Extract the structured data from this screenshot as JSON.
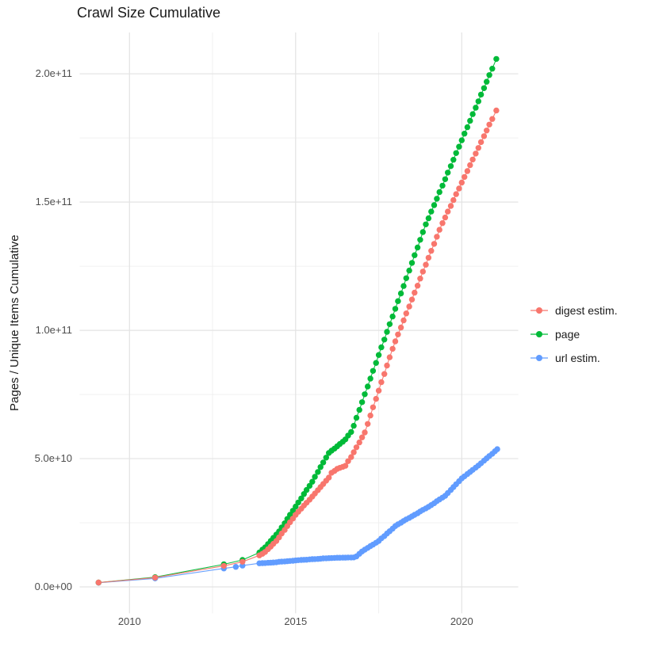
{
  "chart_data": {
    "type": "line",
    "title": "Crawl Size Cumulative",
    "xlabel": "",
    "ylabel": "Pages / Unique Items Cumulative",
    "unit": "values in 1e9 (billions) of pages / unique items",
    "grid": true,
    "legend_position": "right",
    "xlim": [
      2008.5,
      2021.7
    ],
    "ylim": [
      -10.3,
      216.1
    ],
    "x_ticks": [
      {
        "value": 2010,
        "label": "2010"
      },
      {
        "value": 2015,
        "label": "2015"
      },
      {
        "value": 2020,
        "label": "2020"
      }
    ],
    "x_minor": [
      2012.5,
      2017.5
    ],
    "y_ticks": [
      {
        "value": 0,
        "label": "0.0e+00"
      },
      {
        "value": 50,
        "label": "5.0e+10"
      },
      {
        "value": 100,
        "label": "1.0e+11"
      },
      {
        "value": 150,
        "label": "1.5e+11"
      },
      {
        "value": 200,
        "label": "2.0e+11"
      }
    ],
    "y_minor": [
      25,
      75,
      125,
      175
    ],
    "series": [
      {
        "name": "digest estim.",
        "color": "#F8766D",
        "points": [
          [
            2009.07,
            1.7
          ],
          [
            2010.77,
            3.6
          ],
          [
            2012.84,
            8.2
          ],
          [
            2013.4,
            9.8
          ],
          [
            2013.91,
            12.3
          ],
          [
            2014.0,
            12.9
          ],
          [
            2014.08,
            13.6
          ],
          [
            2014.17,
            14.7
          ],
          [
            2014.25,
            15.7
          ],
          [
            2014.33,
            16.8
          ],
          [
            2014.42,
            17.9
          ],
          [
            2014.5,
            19.3
          ],
          [
            2014.58,
            20.8
          ],
          [
            2014.67,
            22.2
          ],
          [
            2014.75,
            23.7
          ],
          [
            2014.83,
            25.2
          ],
          [
            2014.92,
            26.6
          ],
          [
            2015.0,
            28.1
          ],
          [
            2015.08,
            29.3
          ],
          [
            2015.17,
            30.5
          ],
          [
            2015.25,
            31.7
          ],
          [
            2015.33,
            32.8
          ],
          [
            2015.42,
            34.0
          ],
          [
            2015.5,
            35.2
          ],
          [
            2015.58,
            36.4
          ],
          [
            2015.67,
            37.7
          ],
          [
            2015.75,
            38.9
          ],
          [
            2015.83,
            40.1
          ],
          [
            2015.92,
            41.4
          ],
          [
            2016.0,
            42.6
          ],
          [
            2016.08,
            44.5
          ],
          [
            2016.17,
            45.2
          ],
          [
            2016.25,
            46.0
          ],
          [
            2016.33,
            46.4
          ],
          [
            2016.42,
            46.8
          ],
          [
            2016.5,
            47.2
          ],
          [
            2016.58,
            49.0
          ],
          [
            2016.67,
            50.6
          ],
          [
            2016.75,
            52.5
          ],
          [
            2016.83,
            54.4
          ],
          [
            2016.92,
            56.3
          ],
          [
            2017.0,
            58.3
          ],
          [
            2017.08,
            60.2
          ],
          [
            2017.17,
            63.5
          ],
          [
            2017.25,
            66.8
          ],
          [
            2017.33,
            70.0
          ],
          [
            2017.42,
            73.3
          ],
          [
            2017.5,
            76.5
          ],
          [
            2017.58,
            79.8
          ],
          [
            2017.67,
            83.0
          ],
          [
            2017.75,
            86.3
          ],
          [
            2017.83,
            89.5
          ],
          [
            2017.92,
            92.8
          ],
          [
            2018.0,
            95.7
          ],
          [
            2018.08,
            98.4
          ],
          [
            2018.17,
            101.1
          ],
          [
            2018.25,
            103.9
          ],
          [
            2018.33,
            106.6
          ],
          [
            2018.42,
            109.3
          ],
          [
            2018.5,
            112.0
          ],
          [
            2018.58,
            114.7
          ],
          [
            2018.67,
            117.4
          ],
          [
            2018.75,
            120.2
          ],
          [
            2018.83,
            122.9
          ],
          [
            2018.92,
            125.6
          ],
          [
            2019.0,
            128.3
          ],
          [
            2019.08,
            131.0
          ],
          [
            2019.17,
            133.7
          ],
          [
            2019.25,
            136.5
          ],
          [
            2019.33,
            139.2
          ],
          [
            2019.42,
            141.8
          ],
          [
            2019.5,
            144.0
          ],
          [
            2019.58,
            146.3
          ],
          [
            2019.67,
            148.5
          ],
          [
            2019.75,
            150.8
          ],
          [
            2019.83,
            153.1
          ],
          [
            2019.92,
            155.3
          ],
          [
            2020.0,
            157.6
          ],
          [
            2020.08,
            159.8
          ],
          [
            2020.17,
            162.1
          ],
          [
            2020.25,
            164.4
          ],
          [
            2020.33,
            166.6
          ],
          [
            2020.42,
            168.9
          ],
          [
            2020.5,
            171.1
          ],
          [
            2020.58,
            173.4
          ],
          [
            2020.67,
            175.7
          ],
          [
            2020.75,
            177.9
          ],
          [
            2020.83,
            180.2
          ],
          [
            2020.92,
            182.4
          ],
          [
            2021.04,
            185.7
          ]
        ]
      },
      {
        "name": "page",
        "color": "#00BA38",
        "points": [
          [
            2009.07,
            1.7
          ],
          [
            2010.77,
            3.8
          ],
          [
            2012.84,
            8.8
          ],
          [
            2013.4,
            10.5
          ],
          [
            2013.91,
            13.4
          ],
          [
            2014.0,
            14.5
          ],
          [
            2014.08,
            15.4
          ],
          [
            2014.17,
            16.7
          ],
          [
            2014.25,
            17.9
          ],
          [
            2014.33,
            19.1
          ],
          [
            2014.42,
            20.4
          ],
          [
            2014.5,
            21.6
          ],
          [
            2014.58,
            23.2
          ],
          [
            2014.67,
            24.8
          ],
          [
            2014.75,
            26.5
          ],
          [
            2014.83,
            28.1
          ],
          [
            2014.92,
            29.7
          ],
          [
            2015.0,
            31.3
          ],
          [
            2015.08,
            32.9
          ],
          [
            2015.17,
            34.5
          ],
          [
            2015.25,
            36.2
          ],
          [
            2015.33,
            37.8
          ],
          [
            2015.42,
            39.4
          ],
          [
            2015.5,
            41.0
          ],
          [
            2015.58,
            42.9
          ],
          [
            2015.67,
            44.8
          ],
          [
            2015.75,
            46.7
          ],
          [
            2015.83,
            48.5
          ],
          [
            2015.92,
            50.4
          ],
          [
            2016.0,
            52.2
          ],
          [
            2016.08,
            53.1
          ],
          [
            2016.17,
            53.9
          ],
          [
            2016.25,
            54.8
          ],
          [
            2016.33,
            55.7
          ],
          [
            2016.42,
            56.6
          ],
          [
            2016.5,
            57.5
          ],
          [
            2016.58,
            59.0
          ],
          [
            2016.67,
            60.4
          ],
          [
            2016.75,
            62.8
          ],
          [
            2016.83,
            65.9
          ],
          [
            2016.92,
            69.0
          ],
          [
            2017.0,
            72.0
          ],
          [
            2017.08,
            75.1
          ],
          [
            2017.17,
            78.1
          ],
          [
            2017.25,
            81.2
          ],
          [
            2017.33,
            84.2
          ],
          [
            2017.42,
            87.3
          ],
          [
            2017.5,
            90.4
          ],
          [
            2017.58,
            93.4
          ],
          [
            2017.67,
            96.4
          ],
          [
            2017.75,
            99.4
          ],
          [
            2017.83,
            102.4
          ],
          [
            2017.92,
            105.4
          ],
          [
            2018.0,
            108.4
          ],
          [
            2018.08,
            111.4
          ],
          [
            2018.17,
            114.4
          ],
          [
            2018.25,
            117.3
          ],
          [
            2018.33,
            120.3
          ],
          [
            2018.42,
            123.3
          ],
          [
            2018.5,
            126.3
          ],
          [
            2018.58,
            129.3
          ],
          [
            2018.67,
            132.3
          ],
          [
            2018.75,
            135.3
          ],
          [
            2018.83,
            138.3
          ],
          [
            2018.92,
            141.3
          ],
          [
            2019.0,
            143.7
          ],
          [
            2019.08,
            146.3
          ],
          [
            2019.17,
            148.8
          ],
          [
            2019.25,
            151.3
          ],
          [
            2019.33,
            153.9
          ],
          [
            2019.42,
            156.4
          ],
          [
            2019.5,
            158.9
          ],
          [
            2019.58,
            161.5
          ],
          [
            2019.67,
            164.0
          ],
          [
            2019.75,
            166.5
          ],
          [
            2019.83,
            169.1
          ],
          [
            2019.92,
            171.6
          ],
          [
            2020.0,
            174.1
          ],
          [
            2020.08,
            176.7
          ],
          [
            2020.17,
            179.2
          ],
          [
            2020.25,
            181.7
          ],
          [
            2020.33,
            184.3
          ],
          [
            2020.42,
            186.8
          ],
          [
            2020.5,
            189.3
          ],
          [
            2020.58,
            191.9
          ],
          [
            2020.67,
            194.4
          ],
          [
            2020.75,
            196.9
          ],
          [
            2020.83,
            199.5
          ],
          [
            2020.92,
            202.0
          ],
          [
            2021.04,
            205.8
          ]
        ]
      },
      {
        "name": "url estim.",
        "color": "#619CFF",
        "points": [
          [
            2009.07,
            1.6
          ],
          [
            2010.77,
            3.3
          ],
          [
            2012.84,
            7.2
          ],
          [
            2013.2,
            7.8
          ],
          [
            2013.4,
            8.3
          ],
          [
            2013.91,
            9.2
          ],
          [
            2014.0,
            9.25
          ],
          [
            2014.08,
            9.3
          ],
          [
            2014.17,
            9.4
          ],
          [
            2014.25,
            9.45
          ],
          [
            2014.33,
            9.5
          ],
          [
            2014.42,
            9.6
          ],
          [
            2014.5,
            9.8
          ],
          [
            2014.58,
            9.85
          ],
          [
            2014.67,
            9.9
          ],
          [
            2014.75,
            10.0
          ],
          [
            2014.83,
            10.1
          ],
          [
            2014.92,
            10.2
          ],
          [
            2015.0,
            10.3
          ],
          [
            2015.08,
            10.4
          ],
          [
            2015.17,
            10.5
          ],
          [
            2015.25,
            10.55
          ],
          [
            2015.33,
            10.6
          ],
          [
            2015.42,
            10.7
          ],
          [
            2015.5,
            10.8
          ],
          [
            2015.58,
            10.85
          ],
          [
            2015.67,
            10.9
          ],
          [
            2015.75,
            11.0
          ],
          [
            2015.83,
            11.1
          ],
          [
            2015.92,
            11.15
          ],
          [
            2016.0,
            11.2
          ],
          [
            2016.08,
            11.25
          ],
          [
            2016.17,
            11.3
          ],
          [
            2016.25,
            11.35
          ],
          [
            2016.33,
            11.35
          ],
          [
            2016.42,
            11.4
          ],
          [
            2016.5,
            11.4
          ],
          [
            2016.58,
            11.45
          ],
          [
            2016.67,
            11.45
          ],
          [
            2016.75,
            11.5
          ],
          [
            2016.83,
            11.9
          ],
          [
            2016.92,
            12.9
          ],
          [
            2017.0,
            13.8
          ],
          [
            2017.08,
            14.5
          ],
          [
            2017.17,
            15.2
          ],
          [
            2017.25,
            15.9
          ],
          [
            2017.33,
            16.5
          ],
          [
            2017.42,
            17.2
          ],
          [
            2017.5,
            17.9
          ],
          [
            2017.58,
            18.9
          ],
          [
            2017.67,
            19.8
          ],
          [
            2017.75,
            20.8
          ],
          [
            2017.83,
            21.7
          ],
          [
            2017.92,
            22.7
          ],
          [
            2018.0,
            23.7
          ],
          [
            2018.08,
            24.4
          ],
          [
            2018.17,
            25.0
          ],
          [
            2018.25,
            25.7
          ],
          [
            2018.33,
            26.3
          ],
          [
            2018.42,
            26.9
          ],
          [
            2018.5,
            27.5
          ],
          [
            2018.58,
            28.1
          ],
          [
            2018.67,
            28.7
          ],
          [
            2018.75,
            29.4
          ],
          [
            2018.83,
            30.0
          ],
          [
            2018.92,
            30.6
          ],
          [
            2019.0,
            31.2
          ],
          [
            2019.08,
            31.9
          ],
          [
            2019.17,
            32.6
          ],
          [
            2019.25,
            33.4
          ],
          [
            2019.33,
            34.1
          ],
          [
            2019.42,
            34.8
          ],
          [
            2019.5,
            35.5
          ],
          [
            2019.58,
            36.6
          ],
          [
            2019.67,
            37.8
          ],
          [
            2019.75,
            38.9
          ],
          [
            2019.83,
            40.0
          ],
          [
            2019.92,
            41.2
          ],
          [
            2020.0,
            42.3
          ],
          [
            2020.08,
            43.1
          ],
          [
            2020.17,
            44.0
          ],
          [
            2020.25,
            44.8
          ],
          [
            2020.33,
            45.6
          ],
          [
            2020.42,
            46.5
          ],
          [
            2020.5,
            47.3
          ],
          [
            2020.58,
            48.2
          ],
          [
            2020.67,
            49.2
          ],
          [
            2020.75,
            50.1
          ],
          [
            2020.83,
            51.0
          ],
          [
            2020.92,
            51.9
          ],
          [
            2021.0,
            52.9
          ],
          [
            2021.07,
            53.7
          ]
        ]
      }
    ]
  }
}
